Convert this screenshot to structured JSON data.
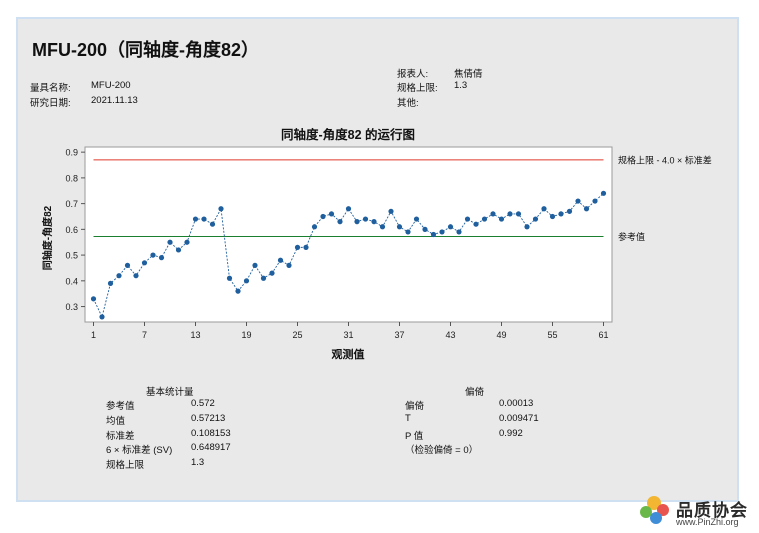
{
  "report": {
    "title": "MFU-200（同轴度-角度82）",
    "left_info": [
      {
        "label": "量具名称:",
        "value": "MFU-200"
      },
      {
        "label": "研究日期:",
        "value": "2021.11.13"
      }
    ],
    "right_info": [
      {
        "label": "报表人:",
        "value": "焦倩倩"
      },
      {
        "label": "规格上限:",
        "value": "1.3"
      },
      {
        "label": "其他:",
        "value": ""
      }
    ]
  },
  "chart_data": {
    "type": "line",
    "title": "同轴度-角度82 的运行图",
    "xlabel": "观测值",
    "ylabel": "同轴度-角度82",
    "x_ticks": [
      1,
      7,
      13,
      19,
      25,
      31,
      37,
      43,
      49,
      55,
      61
    ],
    "y_ticks": [
      "0.3",
      "0.4",
      "0.5",
      "0.6",
      "0.7",
      "0.8",
      "0.9"
    ],
    "xlim": [
      0,
      62
    ],
    "ylim": [
      0.24,
      0.92
    ],
    "series": [
      {
        "values": [
          0.33,
          0.26,
          0.39,
          0.42,
          0.46,
          0.42,
          0.47,
          0.5,
          0.49,
          0.55,
          0.52,
          0.55,
          0.64,
          0.64,
          0.62,
          0.68,
          0.41,
          0.36,
          0.4,
          0.46,
          0.41,
          0.43,
          0.48,
          0.46,
          0.53,
          0.53,
          0.61,
          0.65,
          0.66,
          0.63,
          0.68,
          0.63,
          0.64,
          0.63,
          0.61,
          0.67,
          0.61,
          0.59,
          0.64,
          0.6,
          0.58,
          0.59,
          0.61,
          0.59,
          0.64,
          0.62,
          0.64,
          0.66,
          0.64,
          0.66,
          0.66,
          0.61,
          0.64,
          0.68,
          0.65,
          0.66,
          0.67,
          0.71,
          0.68,
          0.71,
          0.74
        ]
      }
    ],
    "reference_lines": [
      {
        "label": "规格上限 - 4.0 × 标准差",
        "value": 0.87,
        "color": "#e0392b"
      },
      {
        "label": "参考值",
        "value": 0.572,
        "color": "#1a7f2e"
      }
    ],
    "line_color": "#1f5f9e",
    "grid": false
  },
  "stats": {
    "basic": {
      "title": "基本统计量",
      "rows": [
        {
          "label": "参考值",
          "value": "0.572"
        },
        {
          "label": "均值",
          "value": "0.57213"
        },
        {
          "label": "标准差",
          "value": "0.108153"
        },
        {
          "label": "6 × 标准差 (SV)",
          "value": "0.648917"
        },
        {
          "label": "规格上限",
          "value": "1.3"
        }
      ]
    },
    "bias": {
      "title": "偏倚",
      "rows": [
        {
          "label": "偏倚",
          "value": "0.00013"
        },
        {
          "label": "T",
          "value": "0.009471"
        },
        {
          "label": "P 值",
          "value": "0.992"
        },
        {
          "label": "（检验偏倚 = 0）",
          "value": ""
        }
      ]
    }
  },
  "watermark": {
    "text": "品质协会",
    "url": "www.PinZhi.org"
  }
}
